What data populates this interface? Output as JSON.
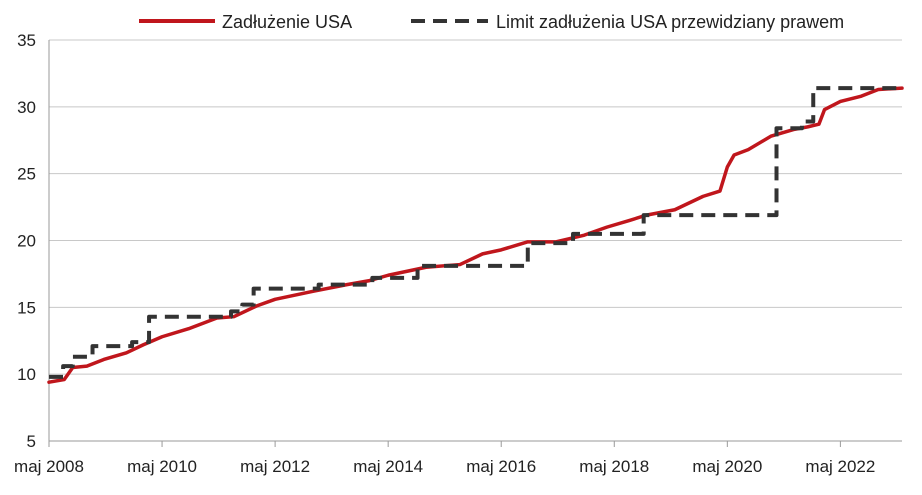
{
  "chart_data": {
    "type": "line",
    "title": "",
    "xlabel": "",
    "ylabel": "",
    "ylim": [
      5,
      35
    ],
    "yticks": [
      5,
      10,
      15,
      20,
      25,
      30,
      35
    ],
    "xlim": [
      2008.33,
      2023.42
    ],
    "x_unit": "year",
    "xticks": [
      {
        "x": 2008.33,
        "label": "maj 2008"
      },
      {
        "x": 2010.33,
        "label": "maj 2010"
      },
      {
        "x": 2012.33,
        "label": "maj 2012"
      },
      {
        "x": 2014.33,
        "label": "maj 2014"
      },
      {
        "x": 2016.33,
        "label": "maj 2016"
      },
      {
        "x": 2018.33,
        "label": "maj 2018"
      },
      {
        "x": 2020.33,
        "label": "maj 2020"
      },
      {
        "x": 2022.33,
        "label": "maj 2022"
      }
    ],
    "grid": "horizontal",
    "legend": "top",
    "series": [
      {
        "name": "Zadłużenie USA",
        "color": "#c0161c",
        "style": "solid",
        "points": [
          [
            2008.33,
            9.4
          ],
          [
            2008.6,
            9.6
          ],
          [
            2008.75,
            10.5
          ],
          [
            2009.0,
            10.6
          ],
          [
            2009.3,
            11.1
          ],
          [
            2009.7,
            11.6
          ],
          [
            2010.0,
            12.2
          ],
          [
            2010.33,
            12.8
          ],
          [
            2010.8,
            13.4
          ],
          [
            2011.3,
            14.2
          ],
          [
            2011.6,
            14.3
          ],
          [
            2012.0,
            15.1
          ],
          [
            2012.33,
            15.6
          ],
          [
            2013.0,
            16.2
          ],
          [
            2013.6,
            16.7
          ],
          [
            2014.0,
            17.0
          ],
          [
            2014.33,
            17.4
          ],
          [
            2015.0,
            18.0
          ],
          [
            2015.6,
            18.2
          ],
          [
            2016.0,
            19.0
          ],
          [
            2016.33,
            19.3
          ],
          [
            2016.8,
            19.9
          ],
          [
            2017.3,
            19.9
          ],
          [
            2017.8,
            20.4
          ],
          [
            2018.2,
            21.0
          ],
          [
            2018.6,
            21.5
          ],
          [
            2018.9,
            21.9
          ],
          [
            2019.4,
            22.3
          ],
          [
            2019.9,
            23.3
          ],
          [
            2020.2,
            23.7
          ],
          [
            2020.33,
            25.5
          ],
          [
            2020.45,
            26.4
          ],
          [
            2020.7,
            26.8
          ],
          [
            2021.1,
            27.8
          ],
          [
            2021.5,
            28.3
          ],
          [
            2021.75,
            28.5
          ],
          [
            2021.95,
            28.7
          ],
          [
            2022.05,
            29.8
          ],
          [
            2022.33,
            30.4
          ],
          [
            2022.7,
            30.8
          ],
          [
            2023.0,
            31.3
          ],
          [
            2023.42,
            31.4
          ]
        ]
      },
      {
        "name": "Limit zadłużenia USA przewidziany prawem",
        "color": "#333333",
        "style": "dashed-step",
        "points": [
          [
            2008.33,
            9.8
          ],
          [
            2008.58,
            10.6
          ],
          [
            2008.75,
            11.3
          ],
          [
            2009.1,
            12.1
          ],
          [
            2009.8,
            12.4
          ],
          [
            2010.1,
            14.3
          ],
          [
            2011.55,
            14.7
          ],
          [
            2011.75,
            15.2
          ],
          [
            2011.95,
            16.4
          ],
          [
            2013.1,
            16.7
          ],
          [
            2014.05,
            17.2
          ],
          [
            2014.85,
            18.1
          ],
          [
            2016.8,
            19.8
          ],
          [
            2017.6,
            20.5
          ],
          [
            2018.85,
            21.9
          ],
          [
            2021.2,
            28.4
          ],
          [
            2021.65,
            28.9
          ],
          [
            2021.85,
            31.4
          ],
          [
            2023.42,
            31.4
          ]
        ]
      }
    ]
  }
}
